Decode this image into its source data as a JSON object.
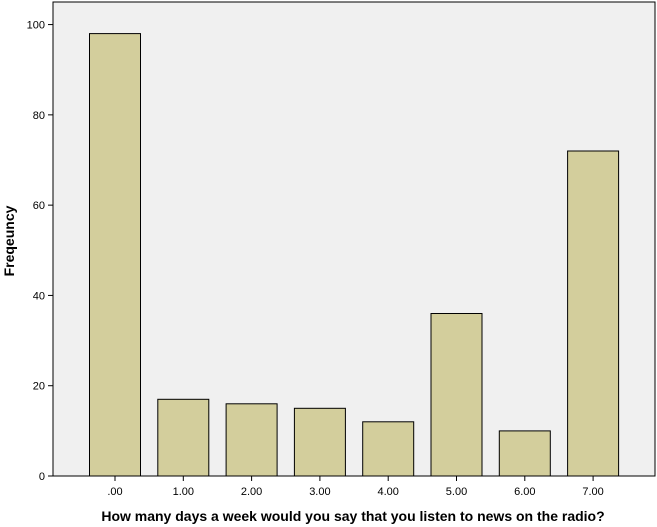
{
  "chart_data": {
    "type": "bar",
    "title": "",
    "xlabel": "How many days a week would you say that you listen to news on the radio?",
    "ylabel": "Freqeuncy",
    "categories": [
      ".00",
      "1.00",
      "2.00",
      "3.00",
      "4.00",
      "5.00",
      "6.00",
      "7.00"
    ],
    "values": [
      98,
      17,
      16,
      15,
      12,
      36,
      10,
      72
    ],
    "ylim": [
      0,
      105
    ],
    "yticks": [
      0,
      20,
      40,
      60,
      80,
      100
    ],
    "grid": false,
    "legend": "none",
    "colors": {
      "plot_background": "#f0f0f0",
      "bar_fill": "#d3ce9c",
      "bar_stroke": "#000000"
    }
  }
}
